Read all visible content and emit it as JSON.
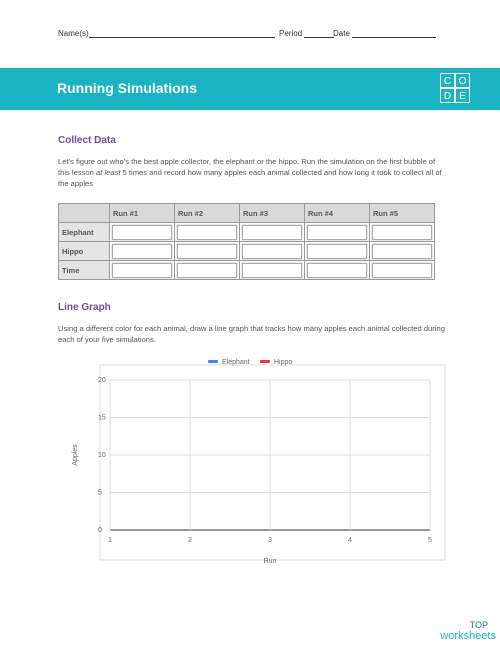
{
  "header": {
    "name_label": "Name(s)",
    "period_label": "Period",
    "date_label": "Date"
  },
  "banner": {
    "title": "Running Simulations",
    "logo": [
      "C",
      "O",
      "D",
      "E"
    ]
  },
  "collect_data": {
    "heading": "Collect Data",
    "text_before": "Let’s figure out who’s the best apple collector, the elephant or the hippo. Run the simulation on the first bubble of this lesson ",
    "emphasis": "at least",
    "text_after": " 5 times and record how many apples each animal collected and how long it took to collect all of the apples"
  },
  "table": {
    "columns": [
      "Run #1",
      "Run #2",
      "Run #3",
      "Run #4",
      "Run #5"
    ],
    "rows": [
      "Elephant",
      "Hippo",
      "Time"
    ]
  },
  "line_graph": {
    "heading": "Line Graph",
    "text": "Using a different color for each animal, draw a line graph that tracks how many apples each animal collected during each of your five simulations."
  },
  "chart": {
    "type": "line",
    "x_label": "Run",
    "y_label": "Apples",
    "series": [
      {
        "name": "Elephant",
        "color": "#4a86e8"
      },
      {
        "name": "Hippo",
        "color": "#e53935"
      }
    ],
    "xlim": [
      1,
      5
    ],
    "xticks": [
      1,
      2,
      3,
      4,
      5
    ],
    "ylim": [
      0,
      20
    ],
    "yticks": [
      0,
      5,
      10,
      15,
      20
    ],
    "grid": true
  },
  "footer": {
    "brand_top": "TOP",
    "brand_bottom": "worksheets"
  }
}
